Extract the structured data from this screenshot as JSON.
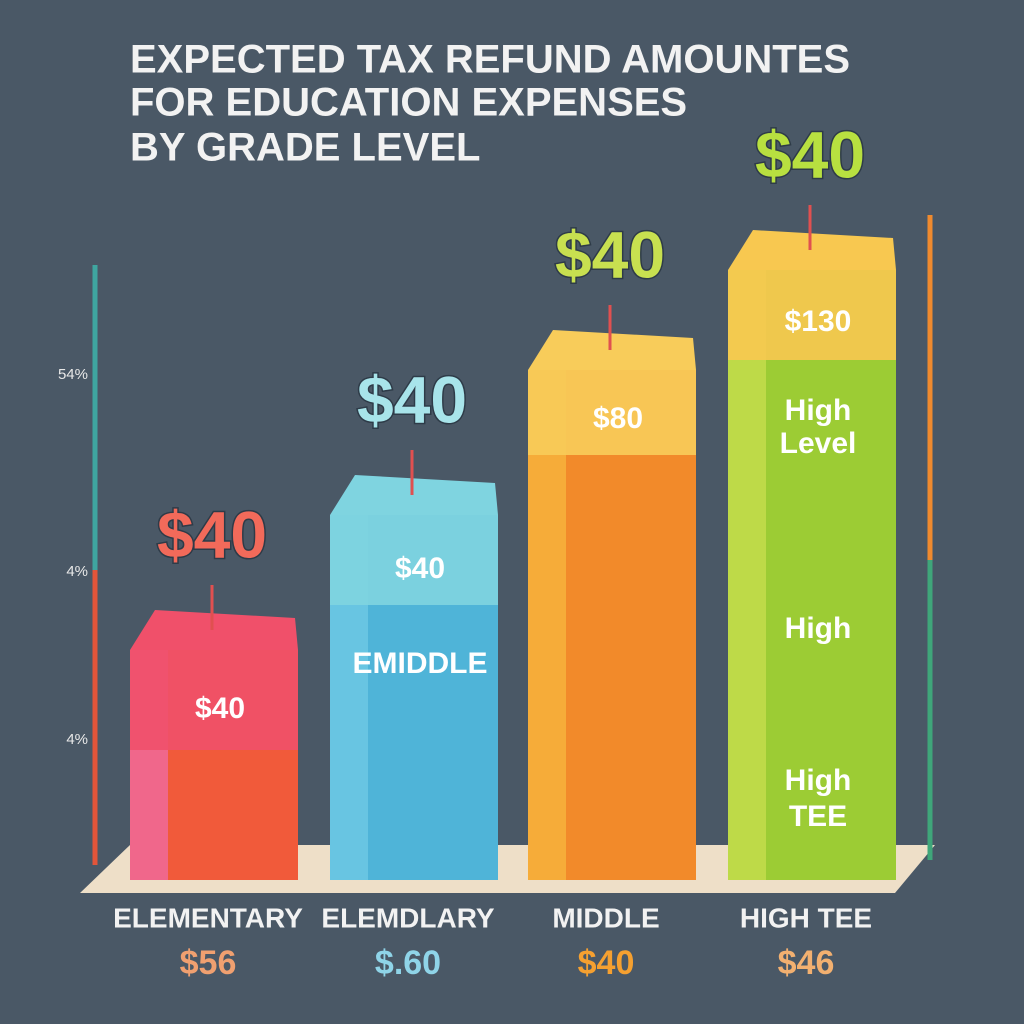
{
  "header": {
    "title_lines": [
      "EXPECTED TAX REFUND AMOUNTES",
      "FOR EDUCATION EXPENSES",
      "BY GRADE LEVEL"
    ]
  },
  "axis_labels": [
    "54%",
    "4%",
    "4%"
  ],
  "bars": [
    {
      "top_label": "$40",
      "inner": [
        "$40"
      ],
      "category": "ELEMENTARY",
      "amount": "$56"
    },
    {
      "top_label": "$40",
      "inner": [
        "$40",
        "EMIDDLE"
      ],
      "category": "ELEMDLARY",
      "amount": "$.60"
    },
    {
      "top_label": "$40",
      "inner": [
        "$80"
      ],
      "category": "MIDDLE",
      "amount": "$40"
    },
    {
      "top_label": "$40",
      "inner": [
        "$130",
        "High",
        "Level",
        "High",
        "High",
        "TEE"
      ],
      "category": "HIGH TEE",
      "amount": "$46"
    }
  ]
}
